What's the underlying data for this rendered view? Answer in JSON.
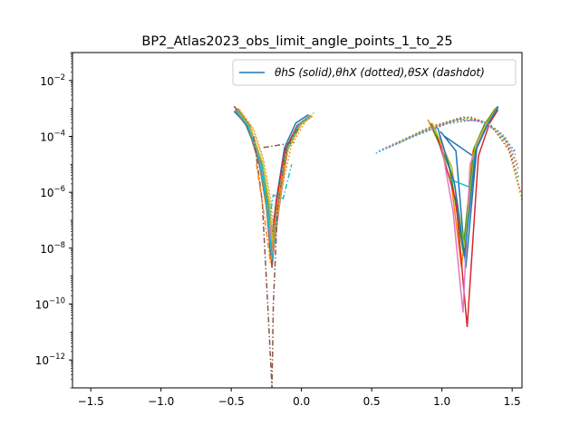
{
  "chart_data": {
    "type": "line",
    "title": "BP2_Atlas2023_obs_limit_angle_points_1_to_25",
    "xlabel": "",
    "ylabel": "",
    "xlim": [
      -1.63,
      1.57
    ],
    "ylim": [
      1e-13,
      0.1
    ],
    "y_scale": "log",
    "grid": false,
    "legend_position": "top-right",
    "legend_entries": [
      {
        "label": "θhS (solid),θhX (dotted),θSX (dashdot)",
        "color": "#1f77b4"
      }
    ],
    "x_ticks": [
      {
        "value": -1.5,
        "label": "−1.5"
      },
      {
        "value": -1.0,
        "label": "−1.0"
      },
      {
        "value": -0.5,
        "label": "−0.5"
      },
      {
        "value": 0.0,
        "label": "0.0"
      },
      {
        "value": 0.5,
        "label": "0.5"
      },
      {
        "value": 1.0,
        "label": "1.0"
      },
      {
        "value": 1.5,
        "label": "1.5"
      }
    ],
    "y_ticks": [
      {
        "exp": -12,
        "base": "10",
        "sup": "−12"
      },
      {
        "exp": -10,
        "base": "10",
        "sup": "−10"
      },
      {
        "exp": -8,
        "base": "10",
        "sup": "−8"
      },
      {
        "exp": -6,
        "base": "10",
        "sup": "−6"
      },
      {
        "exp": -4,
        "base": "10",
        "sup": "−4"
      },
      {
        "exp": -2,
        "base": "10",
        "sup": "−2"
      }
    ],
    "colors": [
      "#1f77b4",
      "#ff7f0e",
      "#2ca02c",
      "#d62728",
      "#9467bd",
      "#8c564b",
      "#e377c2",
      "#7f7f7f",
      "#bcbd22",
      "#17becf"
    ],
    "series": [
      {
        "style": "solid",
        "color": "#1f77b4",
        "points": [
          [
            -0.48,
            0.0008
          ],
          [
            -0.4,
            0.0003
          ],
          [
            -0.32,
            3e-05
          ],
          [
            -0.26,
            1e-06
          ],
          [
            -0.22,
            1e-08
          ],
          [
            -0.18,
            5e-07
          ],
          [
            -0.12,
            4e-05
          ],
          [
            -0.04,
            0.0003
          ],
          [
            0.05,
            0.0006
          ]
        ]
      },
      {
        "style": "solid",
        "color": "#ff7f0e",
        "points": [
          [
            -0.47,
            0.0009
          ],
          [
            -0.38,
            0.0002
          ],
          [
            -0.3,
            1e-05
          ],
          [
            -0.25,
            3e-07
          ],
          [
            -0.21,
            3e-09
          ],
          [
            -0.17,
            2e-07
          ],
          [
            -0.11,
            3e-05
          ],
          [
            -0.02,
            0.00025
          ],
          [
            0.06,
            0.0005
          ]
        ]
      },
      {
        "style": "solid",
        "color": "#2ca02c",
        "points": [
          [
            -0.46,
            0.001
          ],
          [
            -0.37,
            0.00025
          ],
          [
            -0.29,
            1.5e-05
          ],
          [
            -0.24,
            5e-07
          ],
          [
            -0.2,
            8e-09
          ],
          [
            -0.16,
            3e-07
          ],
          [
            -0.1,
            3.5e-05
          ],
          [
            -0.01,
            0.00028
          ],
          [
            0.06,
            0.00055
          ]
        ]
      },
      {
        "style": "solid",
        "color": "#d62728",
        "points": [
          [
            -0.48,
            0.0012
          ],
          [
            -0.39,
            0.0003
          ],
          [
            -0.31,
            2e-05
          ],
          [
            -0.25,
            6e-07
          ],
          [
            -0.22,
            5e-09
          ],
          [
            -0.18,
            4e-07
          ],
          [
            -0.12,
            3e-05
          ],
          [
            -0.03,
            0.00025
          ],
          [
            0.05,
            0.0005
          ]
        ]
      },
      {
        "style": "solid",
        "color": "#8c564b",
        "points": [
          [
            -0.47,
            0.0008
          ],
          [
            -0.38,
            0.0002
          ],
          [
            -0.3,
            1.2e-05
          ],
          [
            -0.25,
            4e-07
          ],
          [
            -0.21,
            2e-09
          ],
          [
            -0.17,
            3e-07
          ],
          [
            -0.11,
            2.5e-05
          ],
          [
            -0.02,
            0.00022
          ],
          [
            0.06,
            0.0005
          ]
        ]
      },
      {
        "style": "solid",
        "color": "#e377c2",
        "points": [
          [
            -0.46,
            0.0009
          ],
          [
            -0.37,
            0.00022
          ],
          [
            -0.29,
            1e-05
          ],
          [
            -0.24,
            3e-07
          ],
          [
            -0.2,
            6e-09
          ],
          [
            -0.16,
            2.5e-07
          ],
          [
            -0.1,
            3e-05
          ],
          [
            -0.01,
            0.00026
          ],
          [
            0.07,
            0.00055
          ]
        ]
      },
      {
        "style": "solid",
        "color": "#bcbd22",
        "points": [
          [
            -0.45,
            0.0007
          ],
          [
            -0.36,
            0.00018
          ],
          [
            -0.28,
            1.2e-05
          ],
          [
            -0.23,
            4e-07
          ],
          [
            -0.2,
            1e-08
          ],
          [
            -0.16,
            4e-07
          ],
          [
            -0.1,
            3.2e-05
          ],
          [
            0.0,
            0.00027
          ],
          [
            0.07,
            0.0005
          ]
        ]
      },
      {
        "style": "solid",
        "color": "#17becf",
        "points": [
          [
            -0.47,
            0.00085
          ],
          [
            -0.38,
            0.00023
          ],
          [
            -0.3,
            1.4e-05
          ],
          [
            -0.25,
            5e-07
          ],
          [
            -0.21,
            4e-09
          ],
          [
            -0.17,
            3.5e-07
          ],
          [
            -0.11,
            3.2e-05
          ],
          [
            -0.02,
            0.00026
          ],
          [
            0.06,
            0.00052
          ]
        ]
      },
      {
        "style": "dotted",
        "color": "#bcbd22",
        "points": [
          [
            -0.45,
            0.001
          ],
          [
            -0.35,
            0.0002
          ],
          [
            -0.28,
            2e-05
          ],
          [
            -0.23,
            8e-07
          ],
          [
            -0.2,
            3e-08
          ],
          [
            -0.16,
            1e-06
          ],
          [
            -0.08,
            6e-05
          ],
          [
            0.02,
            0.0004
          ],
          [
            0.09,
            0.0007
          ]
        ]
      },
      {
        "style": "dotted",
        "color": "#ff7f0e",
        "points": [
          [
            -0.44,
            0.0009
          ],
          [
            -0.34,
            0.00018
          ],
          [
            -0.27,
            1.5e-05
          ],
          [
            -0.22,
            6e-07
          ],
          [
            -0.19,
            2e-08
          ],
          [
            -0.15,
            8e-07
          ],
          [
            -0.07,
            5e-05
          ],
          [
            0.03,
            0.00035
          ],
          [
            0.09,
            0.0006
          ]
        ]
      },
      {
        "style": "dashdot",
        "color": "#8c564b",
        "points": [
          [
            -0.34,
            0.0001
          ],
          [
            -0.28,
            5e-07
          ],
          [
            -0.24,
            1e-10
          ],
          [
            -0.21,
            1e-13
          ],
          [
            -0.2,
            1e-10
          ],
          [
            -0.17,
            3e-07
          ],
          [
            -0.1,
            5e-05
          ],
          [
            -0.02,
            0.0002
          ]
        ]
      },
      {
        "style": "dashdot",
        "color": "#8c564b",
        "points": [
          [
            -0.27,
            4e-05
          ],
          [
            -0.05,
            6e-05
          ]
        ]
      },
      {
        "style": "dashdot",
        "color": "#17becf",
        "points": [
          [
            -0.28,
            1e-05
          ],
          [
            -0.23,
            1e-07
          ],
          [
            -0.2,
            8e-07
          ],
          [
            -0.13,
            6e-07
          ],
          [
            -0.07,
            1e-05
          ]
        ]
      },
      {
        "style": "dashdot",
        "color": "#ff7f0e",
        "points": [
          [
            -0.32,
            1e-05
          ],
          [
            -0.26,
            1e-07
          ],
          [
            -0.22,
            3e-09
          ],
          [
            -0.18,
            2e-07
          ],
          [
            -0.1,
            3e-05
          ]
        ]
      },
      {
        "style": "solid",
        "color": "#1f77b4",
        "points": [
          [
            0.99,
            0.00015
          ],
          [
            1.1,
            3e-05
          ],
          [
            1.17,
            2e-09
          ],
          [
            1.25,
            5e-05
          ],
          [
            1.33,
            0.0003
          ],
          [
            1.4,
            0.0012
          ]
        ]
      },
      {
        "style": "solid",
        "color": "#1f77b4",
        "points": [
          [
            1.02,
            0.0001
          ],
          [
            1.22,
            2e-05
          ]
        ]
      },
      {
        "style": "solid",
        "color": "#ff7f0e",
        "points": [
          [
            0.9,
            0.0004
          ],
          [
            1.05,
            1e-05
          ],
          [
            1.14,
            2e-09
          ],
          [
            1.22,
            3e-05
          ],
          [
            1.3,
            0.00025
          ],
          [
            1.38,
            0.001
          ]
        ]
      },
      {
        "style": "solid",
        "color": "#2ca02c",
        "points": [
          [
            0.92,
            0.0003
          ],
          [
            1.06,
            6e-06
          ],
          [
            1.15,
            8e-09
          ],
          [
            1.23,
            4e-05
          ],
          [
            1.31,
            0.0003
          ],
          [
            1.39,
            0.0011
          ]
        ]
      },
      {
        "style": "solid",
        "color": "#d62728",
        "points": [
          [
            0.95,
            0.0002
          ],
          [
            1.1,
            5e-07
          ],
          [
            1.18,
            1.5e-11
          ],
          [
            1.26,
            2e-05
          ],
          [
            1.34,
            0.0003
          ],
          [
            1.4,
            0.0009
          ]
        ]
      },
      {
        "style": "solid",
        "color": "#e377c2",
        "points": [
          [
            0.98,
            0.00015
          ],
          [
            1.08,
            2e-07
          ],
          [
            1.15,
            5e-11
          ],
          [
            1.2,
            1e-05
          ],
          [
            1.3,
            0.0002
          ],
          [
            1.38,
            0.0008
          ]
        ]
      },
      {
        "style": "solid",
        "color": "#bcbd22",
        "points": [
          [
            0.93,
            0.0003
          ],
          [
            1.07,
            8e-06
          ],
          [
            1.16,
            1e-08
          ],
          [
            1.24,
            5e-05
          ],
          [
            1.32,
            0.0003
          ],
          [
            1.39,
            0.001
          ]
        ]
      },
      {
        "style": "solid",
        "color": "#17becf",
        "points": [
          [
            1.05,
            3e-06
          ],
          [
            1.2,
            1.5e-06
          ]
        ]
      },
      {
        "style": "solid",
        "color": "#1f77b4",
        "points": [
          [
            0.97,
            0.0002
          ],
          [
            1.09,
            2e-06
          ],
          [
            1.16,
            5e-09
          ],
          [
            1.24,
            3e-05
          ],
          [
            1.33,
            0.0003
          ],
          [
            1.4,
            0.0011
          ]
        ]
      },
      {
        "style": "dotted",
        "color": "#1f77b4",
        "points": [
          [
            0.55,
            3e-05
          ],
          [
            0.8,
            0.0001
          ],
          [
            1.05,
            0.0003
          ],
          [
            1.25,
            0.0004
          ],
          [
            1.4,
            0.00015
          ],
          [
            1.52,
            3e-05
          ]
        ]
      },
      {
        "style": "dotted",
        "color": "#ff7f0e",
        "points": [
          [
            0.6,
            4e-05
          ],
          [
            0.85,
            0.00015
          ],
          [
            1.1,
            0.0004
          ],
          [
            1.3,
            0.00035
          ],
          [
            1.45,
            0.0001
          ],
          [
            1.54,
            1e-05
          ]
        ]
      },
      {
        "style": "dotted",
        "color": "#2ca02c",
        "points": [
          [
            0.65,
            5e-05
          ],
          [
            0.9,
            0.0002
          ],
          [
            1.15,
            0.0005
          ],
          [
            1.32,
            0.0003
          ],
          [
            1.46,
            6e-05
          ],
          [
            1.55,
            3e-06
          ]
        ]
      },
      {
        "style": "dotted",
        "color": "#d62728",
        "points": [
          [
            0.7,
            6e-05
          ],
          [
            0.95,
            0.00025
          ],
          [
            1.2,
            0.0005
          ],
          [
            1.35,
            0.00025
          ],
          [
            1.48,
            3e-05
          ],
          [
            1.56,
            1e-06
          ]
        ]
      },
      {
        "style": "dotted",
        "color": "#e377c2",
        "points": [
          [
            0.58,
            3.5e-05
          ],
          [
            0.83,
            0.00012
          ],
          [
            1.08,
            0.00035
          ],
          [
            1.28,
            0.00038
          ],
          [
            1.43,
            0.00012
          ],
          [
            1.53,
            2e-05
          ]
        ]
      },
      {
        "style": "dotted",
        "color": "#bcbd22",
        "points": [
          [
            0.68,
            5.5e-05
          ],
          [
            0.93,
            0.00022
          ],
          [
            1.18,
            0.00048
          ],
          [
            1.34,
            0.00028
          ],
          [
            1.47,
            4e-05
          ],
          [
            1.57,
            5e-07
          ]
        ]
      },
      {
        "style": "dotted",
        "color": "#17becf",
        "points": [
          [
            0.53,
            2.5e-05
          ],
          [
            0.78,
            9e-05
          ],
          [
            1.03,
            0.00028
          ],
          [
            1.23,
            0.0004
          ],
          [
            1.39,
            0.00018
          ],
          [
            1.5,
            4e-05
          ]
        ]
      },
      {
        "style": "dotted",
        "color": "#9467bd",
        "points": [
          [
            0.62,
            4e-05
          ],
          [
            0.88,
            0.00016
          ],
          [
            1.12,
            0.00042
          ],
          [
            1.31,
            0.00032
          ],
          [
            1.45,
            8e-05
          ],
          [
            1.55,
            6e-06
          ]
        ]
      }
    ]
  }
}
